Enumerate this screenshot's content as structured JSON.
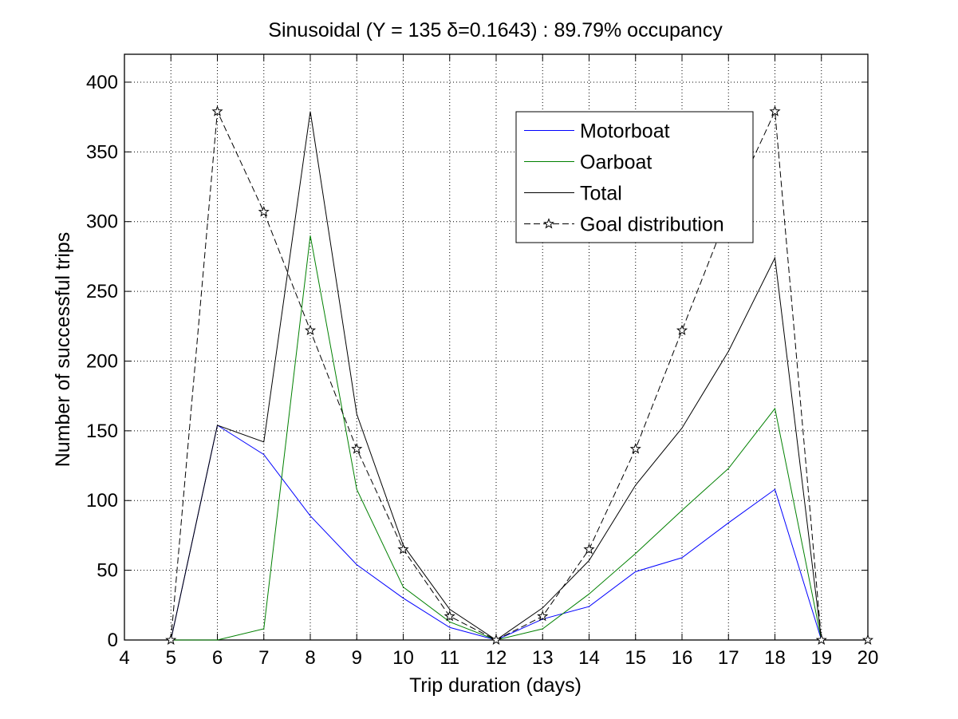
{
  "chart_data": {
    "type": "line",
    "title": "Sinusoidal (Y = 135 δ=0.1643) : 89.79% occupancy",
    "xlabel": "Trip duration (days)",
    "ylabel": "Number of successful trips",
    "xlim": [
      4,
      20
    ],
    "ylim": [
      0,
      420
    ],
    "xticks": [
      4,
      5,
      6,
      7,
      8,
      9,
      10,
      11,
      12,
      13,
      14,
      15,
      16,
      17,
      18,
      19,
      20
    ],
    "yticks": [
      0,
      50,
      100,
      150,
      200,
      250,
      300,
      350,
      400
    ],
    "grid": true,
    "legend_position": "top-right",
    "series": [
      {
        "name": "Motorboat",
        "color": "#0000ff",
        "line_style": "solid",
        "marker": "none",
        "x": [
          5,
          6,
          7,
          8,
          9,
          10,
          11,
          12,
          13,
          14,
          15,
          16,
          17,
          18,
          19
        ],
        "y": [
          0,
          154,
          133,
          89,
          54,
          30,
          9,
          0,
          15,
          24,
          49,
          59,
          84,
          108,
          0
        ]
      },
      {
        "name": "Oarboat",
        "color": "#008000",
        "line_style": "solid",
        "marker": "none",
        "x": [
          5,
          6,
          7,
          8,
          9,
          10,
          11,
          12,
          13,
          14,
          15,
          16,
          17,
          18,
          19
        ],
        "y": [
          0,
          0,
          8,
          290,
          108,
          38,
          13,
          0,
          8,
          33,
          62,
          93,
          123,
          166,
          0
        ]
      },
      {
        "name": "Total",
        "color": "#000000",
        "line_style": "solid",
        "marker": "none",
        "x": [
          5,
          6,
          7,
          8,
          9,
          10,
          11,
          12,
          13,
          14,
          15,
          16,
          17,
          18,
          19
        ],
        "y": [
          0,
          154,
          142,
          379,
          162,
          68,
          22,
          0,
          23,
          57,
          111,
          152,
          207,
          274,
          0
        ]
      },
      {
        "name": "Goal distribution",
        "color": "#000000",
        "line_style": "dashed",
        "marker": "star",
        "x": [
          5,
          6,
          7,
          8,
          9,
          10,
          11,
          12,
          13,
          14,
          15,
          16,
          17,
          18,
          19,
          20
        ],
        "y": [
          0,
          379,
          307,
          222,
          137,
          65,
          17,
          0,
          17,
          65,
          137,
          222,
          307,
          379,
          0,
          0
        ]
      }
    ]
  }
}
